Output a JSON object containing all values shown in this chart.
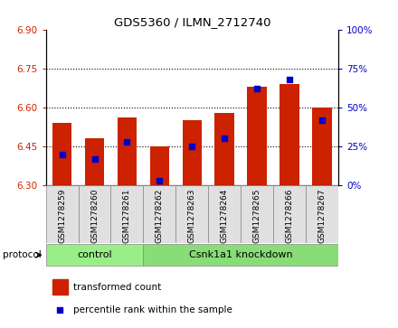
{
  "title": "GDS5360 / ILMN_2712740",
  "samples": [
    "GSM1278259",
    "GSM1278260",
    "GSM1278261",
    "GSM1278262",
    "GSM1278263",
    "GSM1278264",
    "GSM1278265",
    "GSM1278266",
    "GSM1278267"
  ],
  "transformed_count": [
    6.54,
    6.48,
    6.56,
    6.45,
    6.55,
    6.58,
    6.68,
    6.69,
    6.6
  ],
  "percentile_rank": [
    20,
    17,
    28,
    3,
    25,
    30,
    62,
    68,
    42
  ],
  "y_min": 6.3,
  "y_max": 6.9,
  "y_ticks": [
    6.3,
    6.45,
    6.6,
    6.75,
    6.9
  ],
  "y2_min": 0,
  "y2_max": 100,
  "y2_ticks": [
    0,
    25,
    50,
    75,
    100
  ],
  "bar_color": "#CC2200",
  "dot_color": "#0000CC",
  "bar_width": 0.6,
  "groups": [
    {
      "label": "control",
      "indices": [
        0,
        1,
        2
      ],
      "color": "#99EE88"
    },
    {
      "label": "Csnk1a1 knockdown",
      "indices": [
        3,
        4,
        5,
        6,
        7,
        8
      ],
      "color": "#88DD77"
    }
  ],
  "protocol_label": "protocol",
  "legend_bar_label": "transformed count",
  "legend_dot_label": "percentile rank within the sample",
  "background_color": "#FFFFFF",
  "plot_bg_color": "#FFFFFF",
  "tick_label_color_left": "#CC2200",
  "tick_label_color_right": "#0000CC",
  "xlim_left": -0.5,
  "xlim_right": 8.5
}
